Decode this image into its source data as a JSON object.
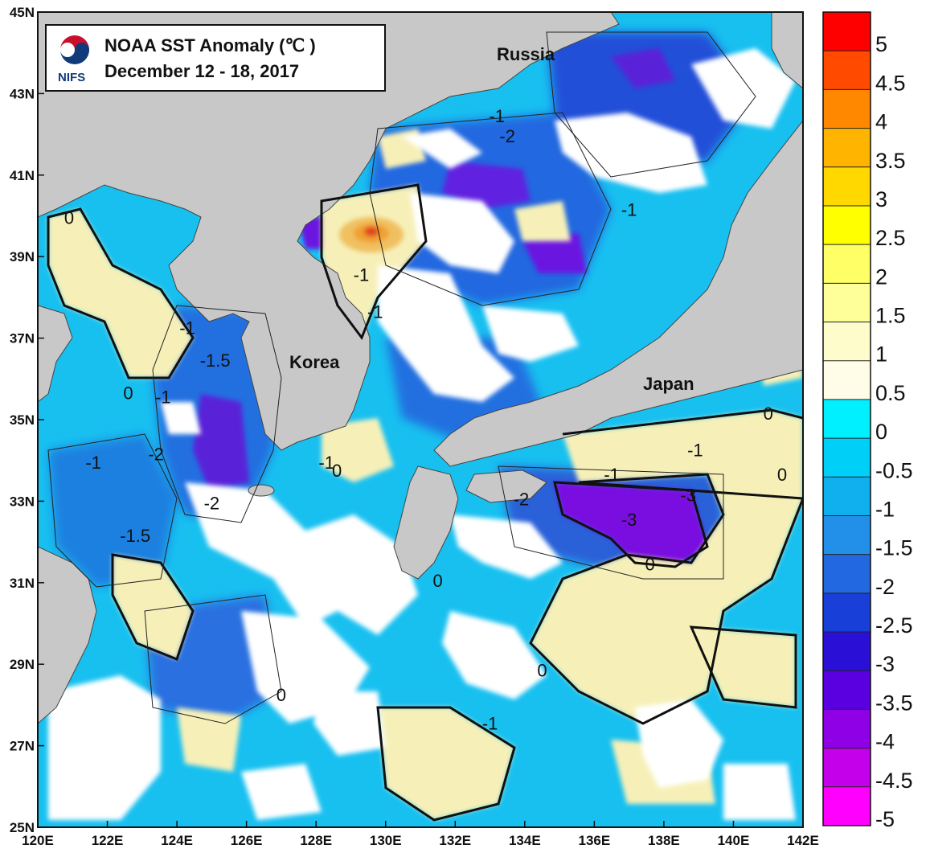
{
  "title": {
    "line1": "NOAA SST Anomaly (℃ )",
    "line2": "December 12 - 18, 2017",
    "logo_text": "NIFS"
  },
  "axes": {
    "x_ticks": [
      "120E",
      "122E",
      "124E",
      "126E",
      "128E",
      "130E",
      "132E",
      "134E",
      "136E",
      "138E",
      "140E",
      "142E"
    ],
    "y_ticks": [
      "45N",
      "43N",
      "41N",
      "39N",
      "37N",
      "35N",
      "33N",
      "31N",
      "29N",
      "27N",
      "25N"
    ]
  },
  "places": {
    "russia": "Russia",
    "korea": "Korea",
    "japan": "Japan"
  },
  "contour_labels": [
    {
      "text": "0",
      "lon": 120.9,
      "lat": 39.8
    },
    {
      "text": "-1",
      "lon": 124.3,
      "lat": 37.1
    },
    {
      "text": "-1.5",
      "lon": 125.1,
      "lat": 36.3
    },
    {
      "text": "0",
      "lon": 122.6,
      "lat": 35.5
    },
    {
      "text": "-1",
      "lon": 123.6,
      "lat": 35.4
    },
    {
      "text": "-2",
      "lon": 123.4,
      "lat": 34.0
    },
    {
      "text": "-1",
      "lon": 121.6,
      "lat": 33.8
    },
    {
      "text": "-2",
      "lon": 125.0,
      "lat": 32.8
    },
    {
      "text": "-1.5",
      "lon": 122.8,
      "lat": 32.0
    },
    {
      "text": "-1",
      "lon": 128.3,
      "lat": 33.8
    },
    {
      "text": "0",
      "lon": 128.6,
      "lat": 33.6
    },
    {
      "text": "-1",
      "lon": 129.3,
      "lat": 38.4
    },
    {
      "text": "-1",
      "lon": 129.7,
      "lat": 37.5
    },
    {
      "text": "-1",
      "lon": 133.2,
      "lat": 42.3
    },
    {
      "text": "-2",
      "lon": 133.5,
      "lat": 41.8
    },
    {
      "text": "-1",
      "lon": 137.0,
      "lat": 40.0
    },
    {
      "text": "-2",
      "lon": 133.9,
      "lat": 32.9
    },
    {
      "text": "-1",
      "lon": 136.5,
      "lat": 33.5
    },
    {
      "text": "-1",
      "lon": 138.9,
      "lat": 34.1
    },
    {
      "text": "-3",
      "lon": 138.7,
      "lat": 33.0
    },
    {
      "text": "-3",
      "lon": 137.0,
      "lat": 32.4
    },
    {
      "text": "0",
      "lon": 137.6,
      "lat": 31.3
    },
    {
      "text": "0",
      "lon": 141.0,
      "lat": 35.0
    },
    {
      "text": "0",
      "lon": 141.4,
      "lat": 33.5
    },
    {
      "text": "0",
      "lon": 131.5,
      "lat": 30.9
    },
    {
      "text": "0",
      "lon": 134.5,
      "lat": 28.7
    },
    {
      "text": "-1",
      "lon": 133.0,
      "lat": 27.4
    },
    {
      "text": "0",
      "lon": 127.0,
      "lat": 28.1
    }
  ],
  "colorbar": {
    "labels": [
      "5",
      "4.5",
      "4",
      "3.5",
      "3",
      "2.5",
      "2",
      "1.5",
      "1",
      "0.5",
      "0",
      "-0.5",
      "-1",
      "-1.5",
      "-2",
      "-2.5",
      "-3",
      "-3.5",
      "-4",
      "-4.5",
      "-5"
    ],
    "colors": [
      "#ff0000",
      "#ff4a00",
      "#ff8800",
      "#ffb400",
      "#ffd800",
      "#ffff00",
      "#ffff66",
      "#ffff99",
      "#fffccc",
      "#fffde8",
      "#00f0ff",
      "#00d0f8",
      "#10b0ee",
      "#2290e8",
      "#2268e0",
      "#1840d8",
      "#2a10d6",
      "#5a00e0",
      "#9000e6",
      "#c400ea",
      "#ff00ff"
    ]
  },
  "map_colors": {
    "land": "#c8c8c8",
    "cloud": "#ffffff",
    "warm": "#f6f0b8",
    "cool": "#18c0f0",
    "colder": "#1e80e0",
    "cold": "#2650d8",
    "coldest": "#7a10e0",
    "hot": "#f0a030",
    "hottest": "#e04020"
  }
}
